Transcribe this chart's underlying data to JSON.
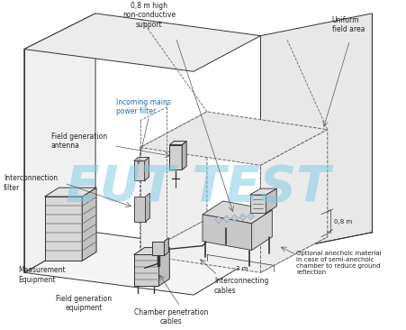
{
  "background_color": "#ffffff",
  "watermark_text": "EUT TEST",
  "watermark_color": "#7ec8e3",
  "watermark_alpha": 0.5,
  "line_color": "#333333",
  "dashed_color": "#666666",
  "label_color": "#222222",
  "mains_color": "#1a6fa8",
  "labels": {
    "support": "0,8 m high\nnon-conductive\nsupport",
    "uniform": "Uniform\nfield area",
    "mains": "Incoming mains\npower filter",
    "antenna": "Field generation\nantenna",
    "interconn_filter": "Interconnection\nfilter",
    "measurement": "Measurement\nEquipment",
    "field_gen_equip": "Field generation\nequipment",
    "interconn_cables": "Interconnecting\ncables",
    "chamber_cables": "Chamber penetration\ncables",
    "anechoic": "Optional anechoic material\nin case of semi-anechoic\nchamber to reduce ground\nreflection",
    "dim_08m": "0,8 m",
    "dim_3m": "3 m"
  },
  "fs": 5.5,
  "sfs": 5.0
}
